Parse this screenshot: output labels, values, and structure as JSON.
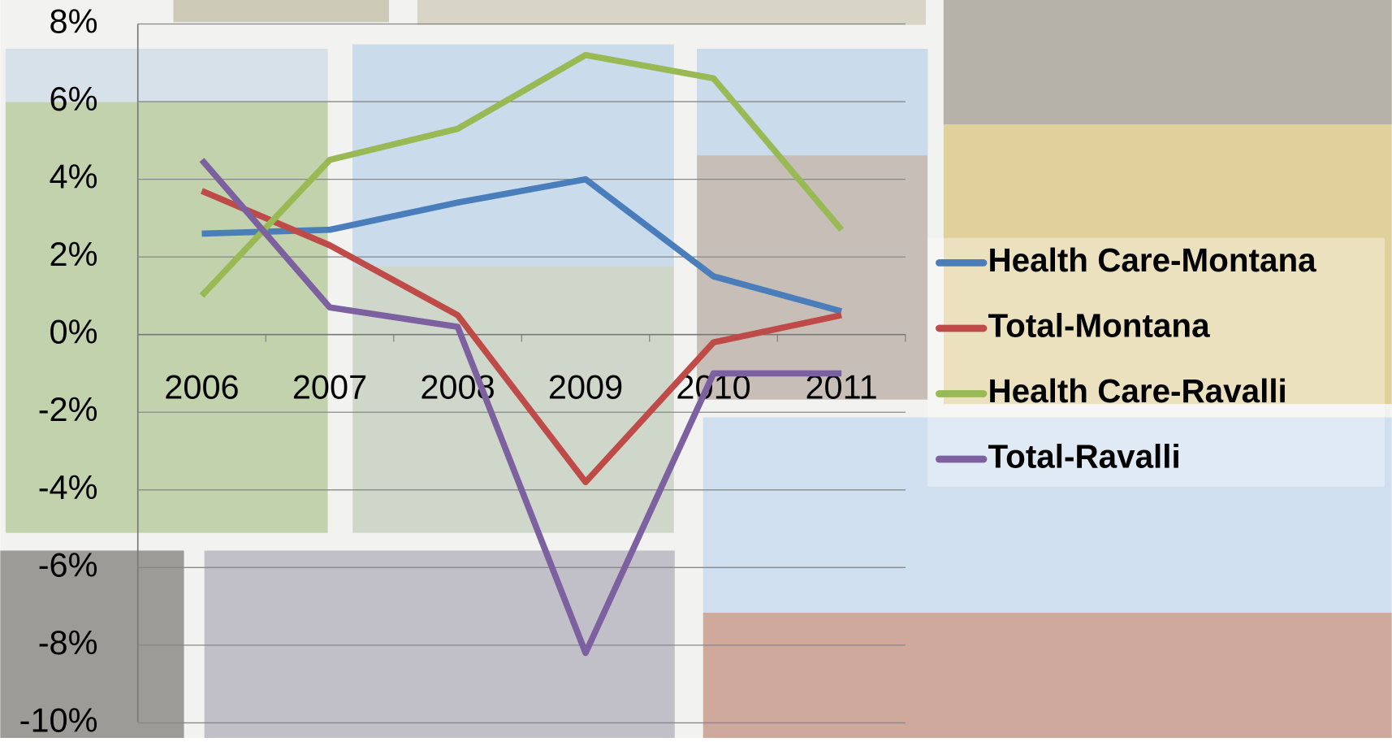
{
  "chart_data": {
    "type": "line",
    "categories": [
      "2006",
      "2007",
      "2008",
      "2009",
      "2010",
      "2011"
    ],
    "series": [
      {
        "name": "Health Care-Montana",
        "color": "#4a7ebb",
        "values": [
          2.6,
          2.7,
          3.4,
          4.0,
          1.5,
          0.6
        ]
      },
      {
        "name": "Total-Montana",
        "color": "#be4b48",
        "values": [
          3.7,
          2.3,
          0.5,
          -3.8,
          -0.2,
          0.5
        ]
      },
      {
        "name": "Health Care-Ravalli",
        "color": "#98b954",
        "values": [
          1.0,
          4.5,
          5.3,
          7.2,
          6.6,
          2.7
        ]
      },
      {
        "name": "Total-Ravalli",
        "color": "#7d60a0",
        "values": [
          4.5,
          0.7,
          0.2,
          -8.2,
          -1.0,
          -1.0
        ]
      }
    ],
    "ylim": [
      -10,
      8
    ],
    "yticks": [
      {
        "value": -10,
        "label": "-10%"
      },
      {
        "value": -8,
        "label": "-8%"
      },
      {
        "value": -6,
        "label": "-6%"
      },
      {
        "value": -4,
        "label": "-4%"
      },
      {
        "value": -2,
        "label": "-2%"
      },
      {
        "value": 0,
        "label": "0%"
      },
      {
        "value": 2,
        "label": "2%"
      },
      {
        "value": 4,
        "label": "4%"
      },
      {
        "value": 6,
        "label": "6%"
      },
      {
        "value": 8,
        "label": "8%"
      }
    ],
    "grid": true,
    "legend": "right"
  }
}
